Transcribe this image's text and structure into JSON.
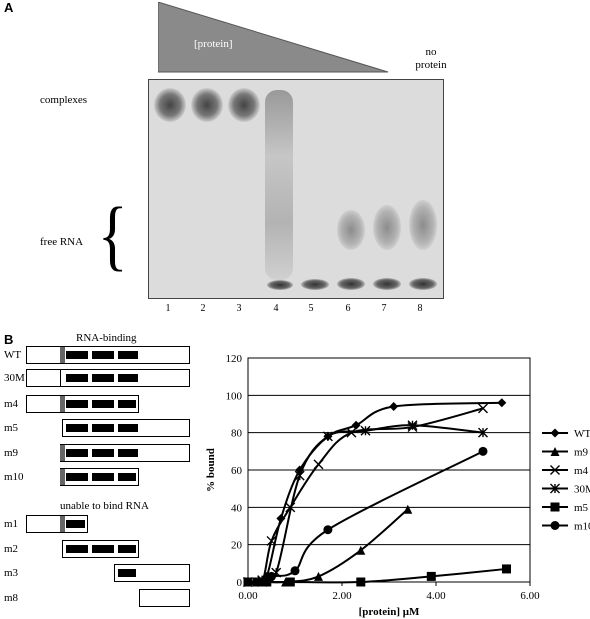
{
  "panelA": {
    "label": "A",
    "wedge_text": "[protein]",
    "no_protein_text": "no\nprotein",
    "complexes_label": "complexes",
    "free_rna_label": "free RNA",
    "brace": "{",
    "lanes": [
      "1",
      "2",
      "3",
      "4",
      "5",
      "6",
      "7",
      "8"
    ]
  },
  "panelB": {
    "label": "B",
    "rna_binding_header": "RNA-binding",
    "unable_header": "unable to bind RNA",
    "constructs_binding": [
      "WT",
      "30M",
      "m4",
      "m5",
      "m9",
      "m10"
    ],
    "constructs_nonbinding": [
      "m1",
      "m2",
      "m3",
      "m8"
    ]
  },
  "chart_data": {
    "type": "line",
    "xlabel": "[protein] μM",
    "ylabel": "% bound",
    "xlim": [
      0,
      6
    ],
    "ylim": [
      0,
      120
    ],
    "x_ticks": [
      "0.00",
      "2.00",
      "4.00",
      "6.00"
    ],
    "y_ticks": [
      "0",
      "20",
      "40",
      "60",
      "80",
      "100",
      "120"
    ],
    "grid": "horizontal",
    "legend_position": "right",
    "series": [
      {
        "name": "WT",
        "marker": "diamond",
        "x": [
          0,
          0.2,
          0.4,
          0.7,
          1.1,
          1.7,
          2.3,
          3.1,
          5.4
        ],
        "y": [
          0,
          0,
          3,
          34,
          60,
          78,
          84,
          94,
          96
        ]
      },
      {
        "name": "m9",
        "marker": "triangle",
        "x": [
          0,
          0.3,
          0.8,
          1.5,
          2.4,
          3.4
        ],
        "y": [
          0,
          0,
          0,
          3,
          17,
          39
        ]
      },
      {
        "name": "m4",
        "marker": "x",
        "x": [
          0,
          0.3,
          0.5,
          0.9,
          1.5,
          2.2,
          3.5,
          5.0
        ],
        "y": [
          0,
          0,
          22,
          40,
          63,
          80,
          83,
          93
        ]
      },
      {
        "name": "30M",
        "marker": "asterisk",
        "x": [
          0,
          0.3,
          0.6,
          1.1,
          1.7,
          2.5,
          3.5,
          5.0
        ],
        "y": [
          0,
          1,
          5,
          57,
          78,
          81,
          84,
          80
        ]
      },
      {
        "name": "m5",
        "marker": "square",
        "x": [
          0,
          0.2,
          0.4,
          0.9,
          2.4,
          3.9,
          5.5
        ],
        "y": [
          0,
          0,
          0,
          0,
          0,
          3,
          7
        ]
      },
      {
        "name": "m10",
        "marker": "circle",
        "x": [
          0,
          0.25,
          0.5,
          1.0,
          1.7,
          5.0
        ],
        "y": [
          0,
          0,
          3,
          6,
          28,
          70
        ]
      }
    ]
  }
}
